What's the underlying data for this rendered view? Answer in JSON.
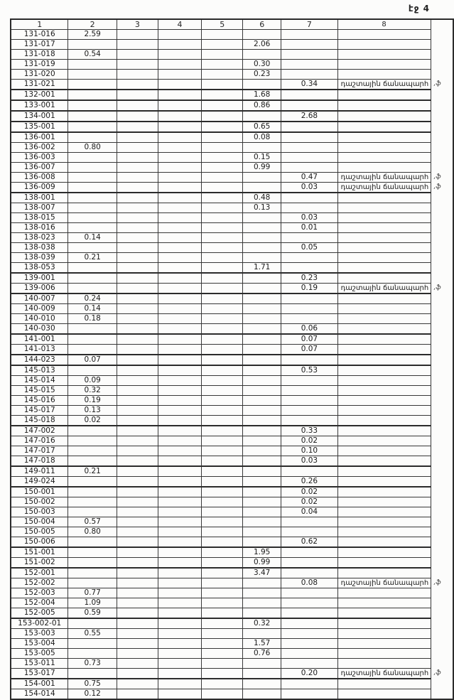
{
  "page": {
    "header": "էջ 4"
  },
  "table": {
    "columns": [
      "1",
      "2",
      "3",
      "4",
      "5",
      "6",
      "7",
      "8"
    ],
    "note_text": "դաշտային ճանապարհ",
    "mark_text": ",ֆ",
    "rows": [
      {
        "cells": [
          "131-016",
          "2.59",
          "",
          "",
          "",
          "",
          "",
          ""
        ]
      },
      {
        "cells": [
          "131-017",
          "",
          "",
          "",
          "",
          "2.06",
          "",
          ""
        ]
      },
      {
        "cells": [
          "131-018",
          "0.54",
          "",
          "",
          "",
          "",
          "",
          ""
        ]
      },
      {
        "cells": [
          "131-019",
          "",
          "",
          "",
          "",
          "0.30",
          "",
          ""
        ]
      },
      {
        "cells": [
          "131-020",
          "",
          "",
          "",
          "",
          "0.23",
          "",
          ""
        ]
      },
      {
        "cells": [
          "131-021",
          "",
          "",
          "",
          "",
          "",
          "0.34",
          "դաշտային ճանապարհ"
        ],
        "mark": ",ֆ"
      },
      {
        "cells": [
          "132-001",
          "",
          "",
          "",
          "",
          "1.68",
          "",
          ""
        ],
        "group": true
      },
      {
        "cells": [
          "133-001",
          "",
          "",
          "",
          "",
          "0.86",
          "",
          ""
        ],
        "group": true
      },
      {
        "cells": [
          "134-001",
          "",
          "",
          "",
          "",
          "",
          "2.68",
          ""
        ],
        "group": true
      },
      {
        "cells": [
          "135-001",
          "",
          "",
          "",
          "",
          "0.65",
          "",
          ""
        ],
        "group": true
      },
      {
        "cells": [
          "136-001",
          "",
          "",
          "",
          "",
          "0.08",
          "",
          ""
        ],
        "group": true
      },
      {
        "cells": [
          "136-002",
          "0.80",
          "",
          "",
          "",
          "",
          "",
          ""
        ]
      },
      {
        "cells": [
          "136-003",
          "",
          "",
          "",
          "",
          "0.15",
          "",
          ""
        ]
      },
      {
        "cells": [
          "136-007",
          "",
          "",
          "",
          "",
          "0.99",
          "",
          ""
        ]
      },
      {
        "cells": [
          "136-008",
          "",
          "",
          "",
          "",
          "",
          "0.47",
          "դաշտային ճանապարհ"
        ],
        "mark": ",ֆ"
      },
      {
        "cells": [
          "136-009",
          "",
          "",
          "",
          "",
          "",
          "0.03",
          "դաշտային ճանապարհ"
        ],
        "mark": ",ֆ"
      },
      {
        "cells": [
          "138-001",
          "",
          "",
          "",
          "",
          "0.48",
          "",
          ""
        ],
        "group": true
      },
      {
        "cells": [
          "138-007",
          "",
          "",
          "",
          "",
          "0.13",
          "",
          ""
        ]
      },
      {
        "cells": [
          "138-015",
          "",
          "",
          "",
          "",
          "",
          "0.03",
          ""
        ]
      },
      {
        "cells": [
          "138-016",
          "",
          "",
          "",
          "",
          "",
          "0.01",
          ""
        ]
      },
      {
        "cells": [
          "138-023",
          "0.14",
          "",
          "",
          "",
          "",
          "",
          ""
        ]
      },
      {
        "cells": [
          "138-038",
          "",
          "",
          "",
          "",
          "",
          "0.05",
          ""
        ]
      },
      {
        "cells": [
          "138-039",
          "0.21",
          "",
          "",
          "",
          "",
          "",
          ""
        ]
      },
      {
        "cells": [
          "138-053",
          "",
          "",
          "",
          "",
          "1.71",
          "",
          ""
        ]
      },
      {
        "cells": [
          "139-001",
          "",
          "",
          "",
          "",
          "",
          "0.23",
          ""
        ],
        "group": true
      },
      {
        "cells": [
          "139-006",
          "",
          "",
          "",
          "",
          "",
          "0.19",
          "դաշտային ճանապարհ"
        ],
        "mark": ",ֆ"
      },
      {
        "cells": [
          "140-007",
          "0.24",
          "",
          "",
          "",
          "",
          "",
          ""
        ],
        "group": true
      },
      {
        "cells": [
          "140-009",
          "0.14",
          "",
          "",
          "",
          "",
          "",
          ""
        ]
      },
      {
        "cells": [
          "140-010",
          "0.18",
          "",
          "",
          "",
          "",
          "",
          ""
        ]
      },
      {
        "cells": [
          "140-030",
          "",
          "",
          "",
          "",
          "",
          "0.06",
          ""
        ]
      },
      {
        "cells": [
          "141-001",
          "",
          "",
          "",
          "",
          "",
          "0.07",
          ""
        ],
        "group": true
      },
      {
        "cells": [
          "141-013",
          "",
          "",
          "",
          "",
          "",
          "0.07",
          ""
        ]
      },
      {
        "cells": [
          "144-023",
          "0.07",
          "",
          "",
          "",
          "",
          "",
          ""
        ],
        "group": true
      },
      {
        "cells": [
          "145-013",
          "",
          "",
          "",
          "",
          "",
          "0.53",
          ""
        ],
        "group": true
      },
      {
        "cells": [
          "145-014",
          "0.09",
          "",
          "",
          "",
          "",
          "",
          ""
        ]
      },
      {
        "cells": [
          "145-015",
          "0.32",
          "",
          "",
          "",
          "",
          "",
          ""
        ]
      },
      {
        "cells": [
          "145-016",
          "0.19",
          "",
          "",
          "",
          "",
          "",
          ""
        ]
      },
      {
        "cells": [
          "145-017",
          "0.13",
          "",
          "",
          "",
          "",
          "",
          ""
        ]
      },
      {
        "cells": [
          "145-018",
          "0.02",
          "",
          "",
          "",
          "",
          "",
          ""
        ]
      },
      {
        "cells": [
          "147-002",
          "",
          "",
          "",
          "",
          "",
          "0.33",
          ""
        ],
        "group": true
      },
      {
        "cells": [
          "147-016",
          "",
          "",
          "",
          "",
          "",
          "0.02",
          ""
        ]
      },
      {
        "cells": [
          "147-017",
          "",
          "",
          "",
          "",
          "",
          "0.10",
          ""
        ]
      },
      {
        "cells": [
          "147-018",
          "",
          "",
          "",
          "",
          "",
          "0.03",
          ""
        ]
      },
      {
        "cells": [
          "149-011",
          "0.21",
          "",
          "",
          "",
          "",
          "",
          ""
        ],
        "group": true
      },
      {
        "cells": [
          "149-024",
          "",
          "",
          "",
          "",
          "",
          "0.26",
          ""
        ]
      },
      {
        "cells": [
          "150-001",
          "",
          "",
          "",
          "",
          "",
          "0.02",
          ""
        ],
        "group": true
      },
      {
        "cells": [
          "150-002",
          "",
          "",
          "",
          "",
          "",
          "0.02",
          ""
        ]
      },
      {
        "cells": [
          "150-003",
          "",
          "",
          "",
          "",
          "",
          "0.04",
          ""
        ]
      },
      {
        "cells": [
          "150-004",
          "0.57",
          "",
          "",
          "",
          "",
          "",
          ""
        ]
      },
      {
        "cells": [
          "150-005",
          "0.80",
          "",
          "",
          "",
          "",
          "",
          ""
        ]
      },
      {
        "cells": [
          "150-006",
          "",
          "",
          "",
          "",
          "",
          "0.62",
          ""
        ]
      },
      {
        "cells": [
          "151-001",
          "",
          "",
          "",
          "",
          "1.95",
          "",
          ""
        ],
        "group": true
      },
      {
        "cells": [
          "151-002",
          "",
          "",
          "",
          "",
          "0.99",
          "",
          ""
        ]
      },
      {
        "cells": [
          "152-001",
          "",
          "",
          "",
          "",
          "3.47",
          "",
          ""
        ],
        "group": true
      },
      {
        "cells": [
          "152-002",
          "",
          "",
          "",
          "",
          "",
          "0.08",
          "դաշտային ճանապարհ"
        ],
        "mark": ",ֆ"
      },
      {
        "cells": [
          "152-003",
          "0.77",
          "",
          "",
          "",
          "",
          "",
          ""
        ]
      },
      {
        "cells": [
          "152-004",
          "1.09",
          "",
          "",
          "",
          "",
          "",
          ""
        ]
      },
      {
        "cells": [
          "152-005",
          "0.59",
          "",
          "",
          "",
          "",
          "",
          ""
        ]
      },
      {
        "cells": [
          "153-002-01",
          "",
          "",
          "",
          "",
          "0.32",
          "",
          ""
        ],
        "group": true
      },
      {
        "cells": [
          "153-003",
          "0.55",
          "",
          "",
          "",
          "",
          "",
          ""
        ]
      },
      {
        "cells": [
          "153-004",
          "",
          "",
          "",
          "",
          "1.57",
          "",
          ""
        ]
      },
      {
        "cells": [
          "153-005",
          "",
          "",
          "",
          "",
          "0.76",
          "",
          ""
        ]
      },
      {
        "cells": [
          "153-011",
          "0.73",
          "",
          "",
          "",
          "",
          "",
          ""
        ]
      },
      {
        "cells": [
          "153-017",
          "",
          "",
          "",
          "",
          "",
          "0.20",
          "դաշտային ճանապարհ"
        ],
        "mark": ",ֆ"
      },
      {
        "cells": [
          "154-001",
          "0.75",
          "",
          "",
          "",
          "",
          "",
          ""
        ],
        "group": true
      },
      {
        "cells": [
          "154-014",
          "0.12",
          "",
          "",
          "",
          "",
          "",
          ""
        ]
      }
    ]
  }
}
